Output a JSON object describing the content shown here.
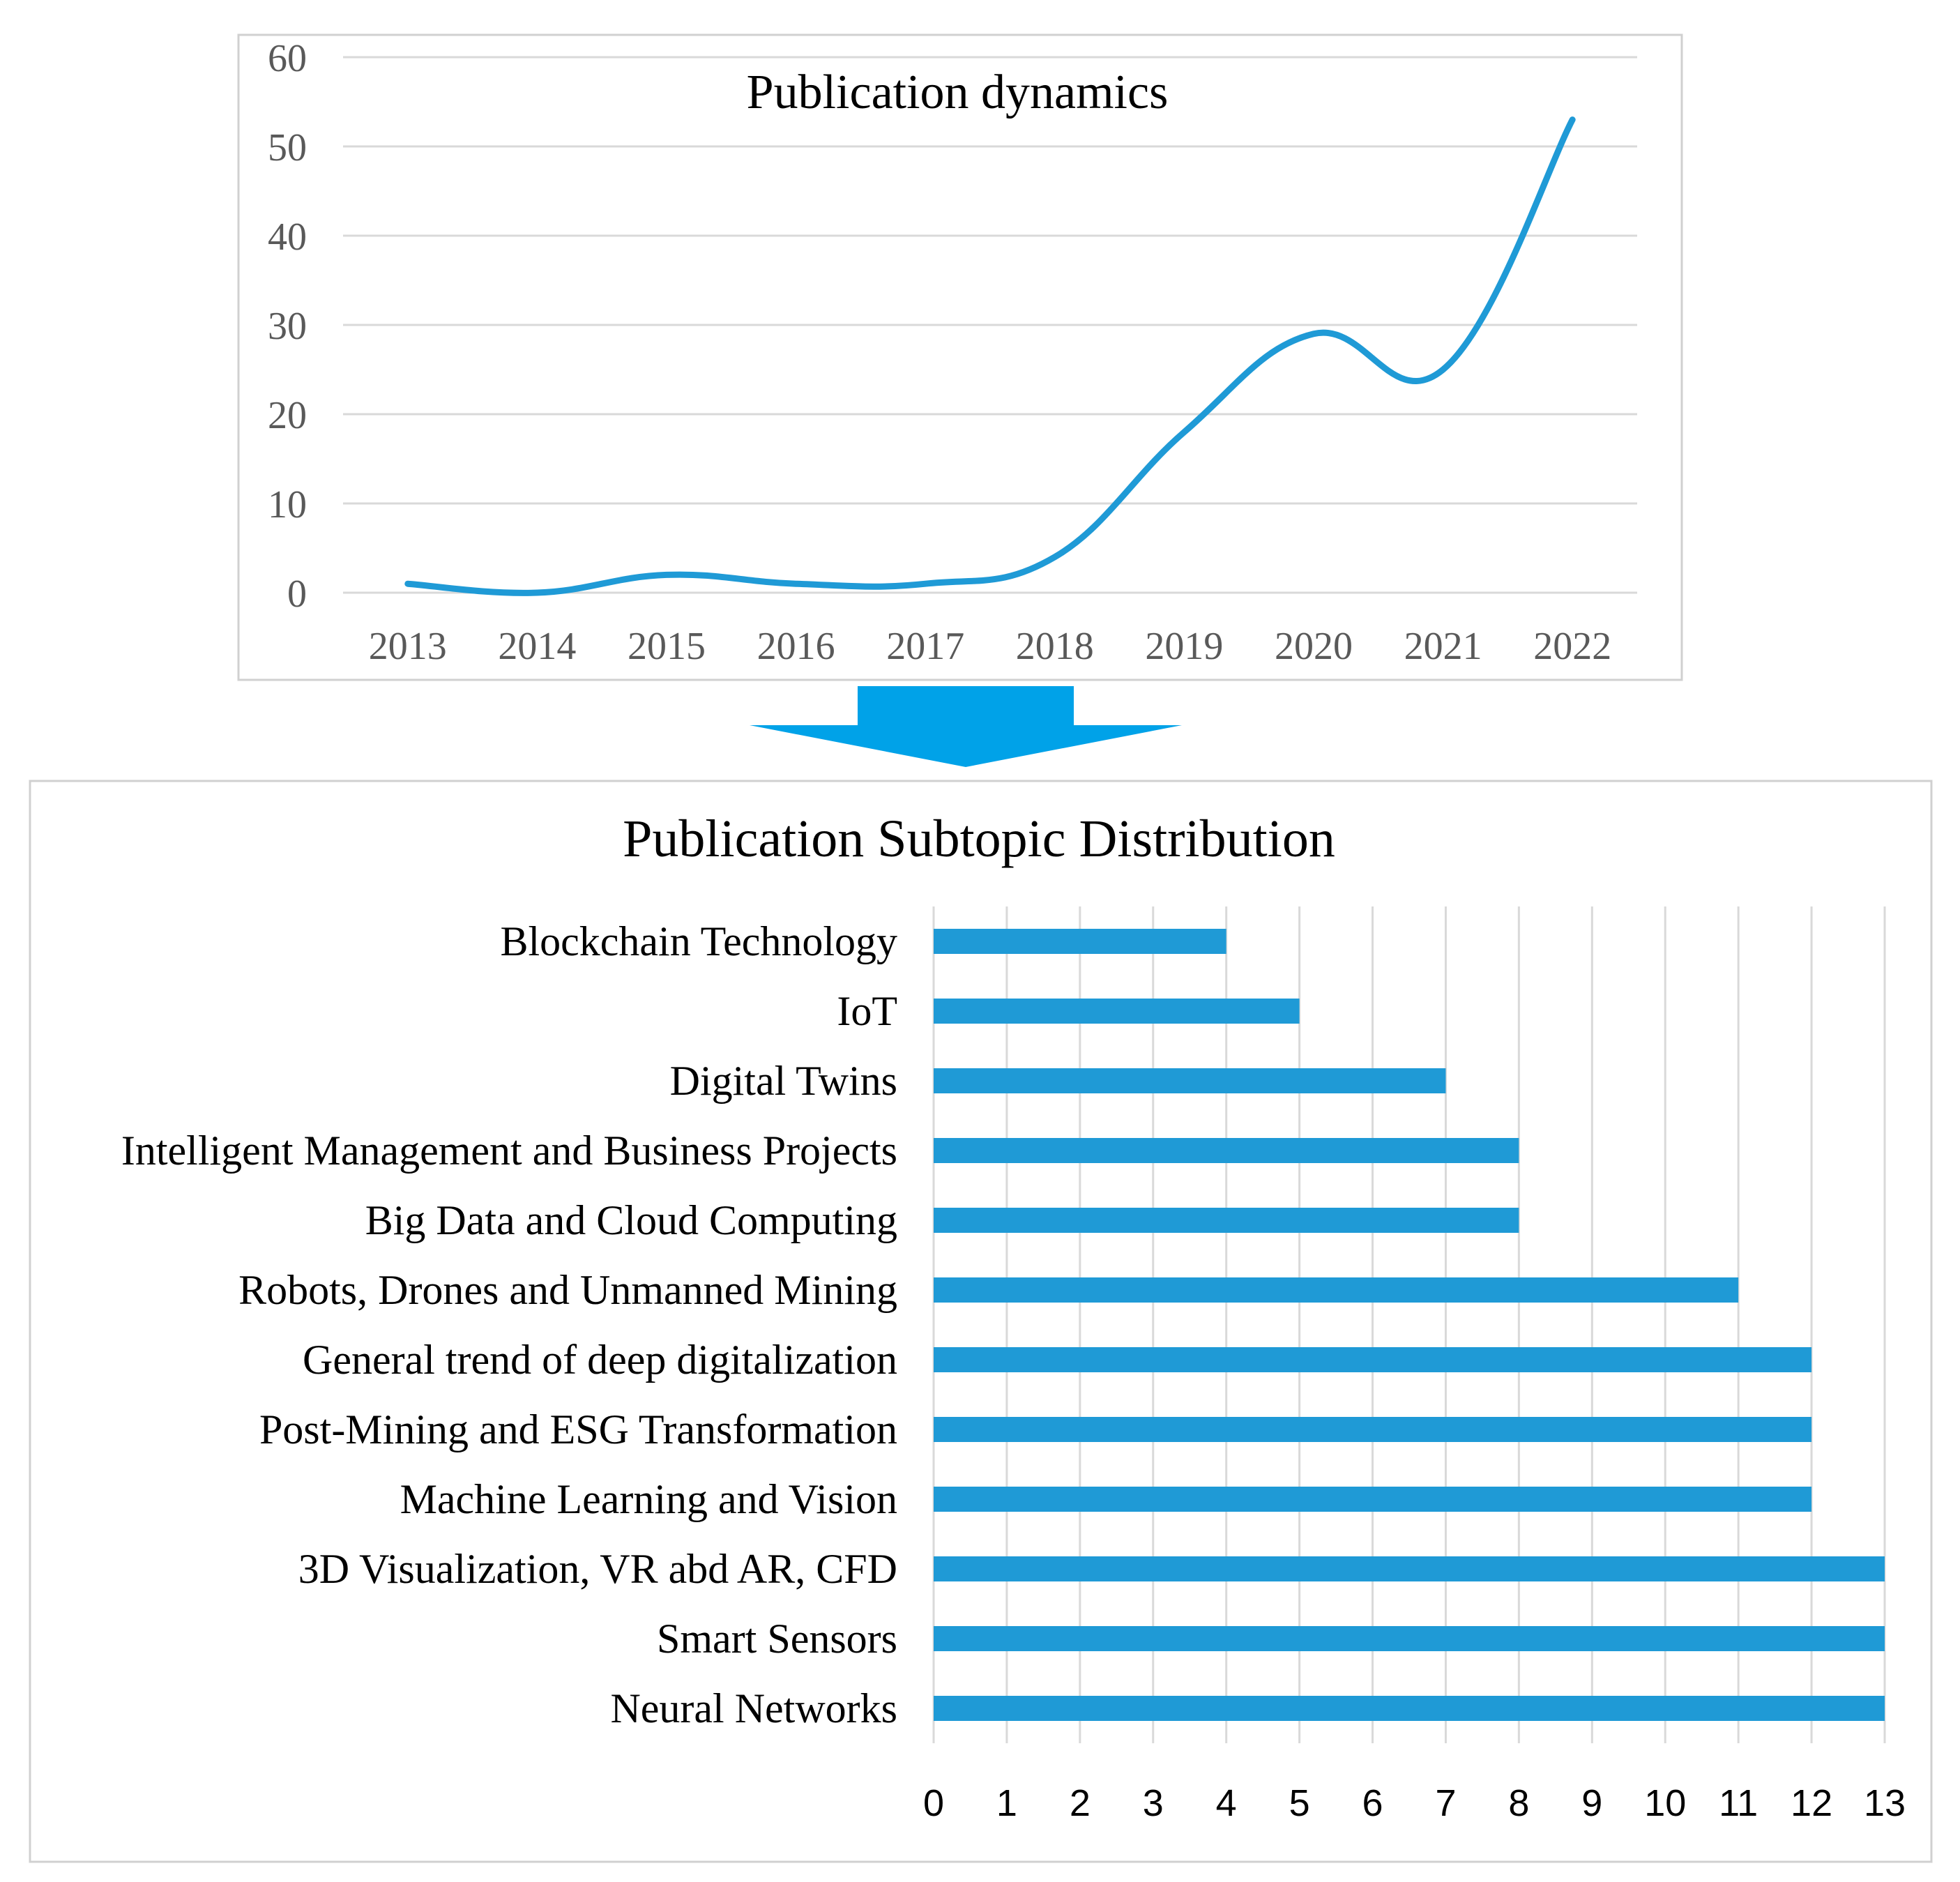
{
  "colors": {
    "line": "#1f9ad6",
    "bar": "#1f9ad6",
    "arrow": "#00a2e8",
    "grid": "#d9d9d9",
    "frame": "#d0d0d0",
    "text": "#000000",
    "axis_text": "#595959"
  },
  "chart_data": [
    {
      "type": "line",
      "title": "Publication dynamics",
      "x": [
        "2013",
        "2014",
        "2015",
        "2016",
        "2017",
        "2018",
        "2019",
        "2020",
        "2021",
        "2022"
      ],
      "values": [
        1,
        0,
        2,
        1,
        1,
        4,
        18,
        29,
        25,
        53
      ],
      "yticks": [
        "0",
        "10",
        "20",
        "30",
        "40",
        "50",
        "60"
      ],
      "ylim": [
        0,
        60
      ],
      "xlabel": "",
      "ylabel": "",
      "grid": true,
      "smooth": true
    },
    {
      "type": "bar",
      "orientation": "horizontal",
      "title": "Publication Subtopic Distribution",
      "categories": [
        "Blockchain Technology",
        "IoT",
        "Digital Twins",
        "Intelligent Management and Business Projects",
        "Big Data and Cloud Computing",
        "Robots, Drones and Unmanned Mining",
        "General trend of deep digitalization",
        "Post-Mining and ESG Transformation",
        "Machine Learning and  Vision",
        "3D Visualization, VR abd AR, CFD",
        "Smart Sensors",
        "Neural Networks"
      ],
      "values": [
        4,
        5,
        7,
        8,
        8,
        11,
        12,
        12,
        12,
        13,
        13,
        13
      ],
      "xticks": [
        "0",
        "1",
        "2",
        "3",
        "4",
        "5",
        "6",
        "7",
        "8",
        "9",
        "10",
        "11",
        "12",
        "13"
      ],
      "xlim": [
        0,
        13
      ],
      "xlabel": "",
      "ylabel": "",
      "grid": true
    }
  ]
}
